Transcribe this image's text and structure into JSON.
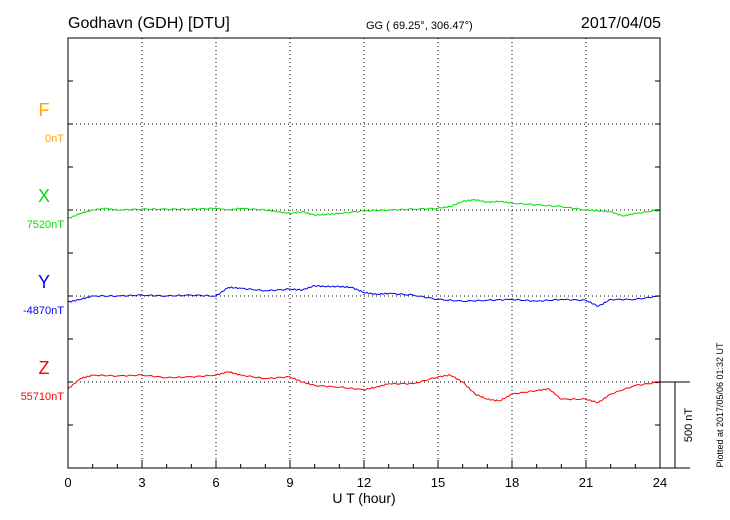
{
  "header": {
    "station": "Godhavn (GDH)  [DTU]",
    "coords": "GG ( 69.25°, 306.47°)",
    "date": "2017/04/05"
  },
  "footer": {
    "plotted": "Plotted at 2017/05/06 01:32 UT"
  },
  "chart_data": {
    "type": "line",
    "xlabel": "U T (hour)",
    "xlim": [
      0,
      24
    ],
    "xticks": [
      "0",
      "3",
      "6",
      "9",
      "12",
      "15",
      "18",
      "21",
      "24"
    ],
    "grid": true,
    "scale_bar": {
      "label": "500 nT",
      "value": 500
    },
    "series": [
      {
        "name": "F",
        "baseline_label": "0nT",
        "color": "#ffa500",
        "x": [],
        "values": []
      },
      {
        "name": "X",
        "baseline_label": "7520nT",
        "color": "#00e000",
        "x": [
          0,
          0.5,
          1,
          1.5,
          2,
          3,
          4,
          5,
          6,
          6.5,
          7,
          8,
          8.5,
          9,
          9.5,
          10,
          10.5,
          11,
          12,
          13,
          14,
          15,
          15.5,
          16,
          16.5,
          17,
          17.5,
          18,
          19,
          20,
          21,
          21.5,
          22,
          22.5,
          23,
          24
        ],
        "values": [
          -50,
          -20,
          0,
          10,
          0,
          5,
          5,
          5,
          10,
          0,
          10,
          0,
          -10,
          -20,
          -10,
          -30,
          -25,
          -20,
          -5,
          0,
          5,
          10,
          20,
          50,
          60,
          45,
          50,
          40,
          30,
          20,
          0,
          -5,
          -10,
          -35,
          -20,
          0
        ]
      },
      {
        "name": "Y",
        "baseline_label": "-4870nT",
        "color": "#0000ff",
        "x": [
          0,
          0.5,
          1,
          2,
          3,
          4,
          5,
          6,
          6.5,
          7,
          8,
          9,
          9.5,
          10,
          10.5,
          11,
          11.5,
          12,
          12.5,
          13,
          14,
          15,
          16,
          17,
          18,
          19,
          20,
          21,
          21.5,
          22,
          23,
          24
        ],
        "values": [
          -35,
          -20,
          0,
          0,
          5,
          0,
          5,
          0,
          50,
          45,
          30,
          40,
          35,
          60,
          55,
          55,
          50,
          20,
          10,
          15,
          5,
          -20,
          -30,
          -25,
          -20,
          -30,
          -20,
          -25,
          -60,
          -20,
          -20,
          0
        ]
      },
      {
        "name": "Z",
        "baseline_label": "55710nT",
        "color": "#ff0000",
        "x": [
          0,
          0.5,
          1,
          2,
          3,
          4,
          5,
          6,
          6.5,
          7,
          8,
          9,
          9.5,
          10,
          11,
          12,
          12.5,
          13,
          14,
          15,
          15.5,
          16,
          16.5,
          17,
          17.5,
          18,
          19,
          19.5,
          20,
          21,
          21.5,
          22,
          23,
          24
        ],
        "values": [
          -40,
          20,
          40,
          35,
          40,
          25,
          30,
          40,
          60,
          40,
          20,
          30,
          0,
          -20,
          -30,
          -45,
          -30,
          -10,
          -10,
          30,
          40,
          0,
          -70,
          -100,
          -110,
          -70,
          -50,
          -40,
          -100,
          -100,
          -120,
          -70,
          -20,
          0
        ]
      }
    ]
  }
}
